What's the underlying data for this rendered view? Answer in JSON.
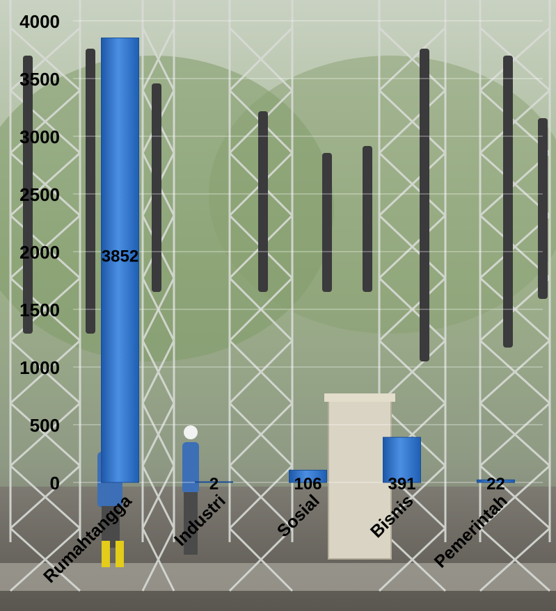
{
  "chart_data": {
    "type": "bar",
    "title": "",
    "xlabel": "",
    "ylabel": "",
    "categories": [
      "Rumahtangga",
      "Industri",
      "Sosial",
      "Bisnis",
      "Pemerintah"
    ],
    "values": [
      3852,
      2,
      106,
      391,
      22
    ],
    "data_labels": [
      "3852",
      "2",
      "106",
      "391",
      "22"
    ],
    "ylim": [
      0,
      4000
    ],
    "yticks": [
      0,
      500,
      1000,
      1500,
      2000,
      2500,
      3000,
      3500,
      4000
    ],
    "grid": true,
    "legend": "none",
    "bar_color": "#2e6fc7",
    "background": "photo of electrical substation with transmission towers and two workers"
  }
}
